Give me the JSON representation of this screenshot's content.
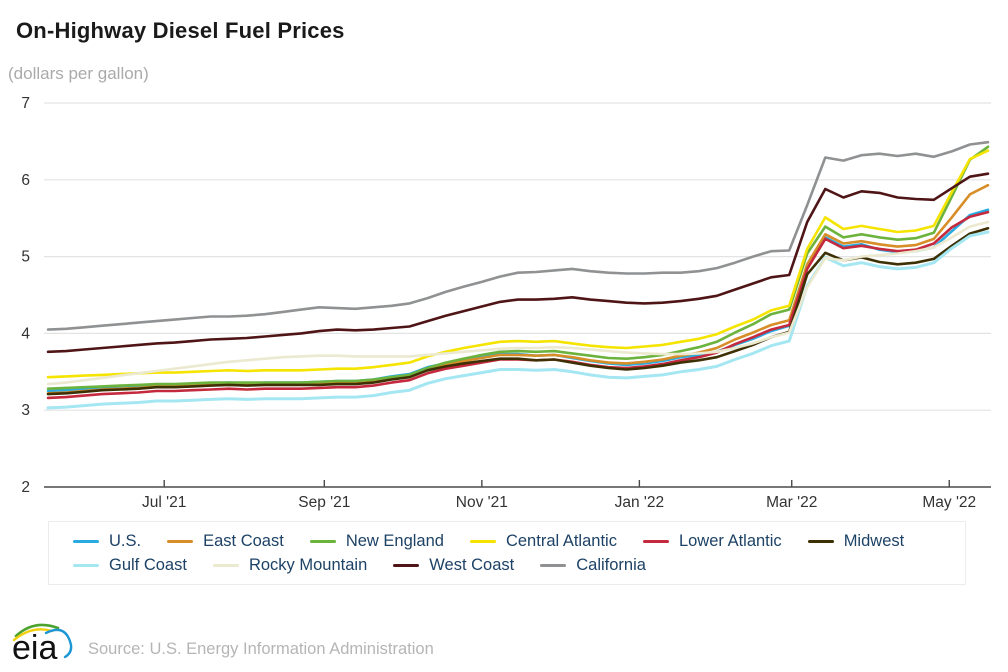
{
  "header": {
    "title": "On-Highway Diesel Fuel Prices",
    "subtitle": "(dollars per gallon)"
  },
  "footer": {
    "logo_text": "eia",
    "source": "Source: U.S. Energy Information Administration"
  },
  "chart_data": {
    "type": "line",
    "title": "On-Highway Diesel Fuel Prices",
    "ylabel": "dollars per gallon",
    "ylim": [
      2,
      7
    ],
    "yticks": [
      2,
      3,
      4,
      5,
      6,
      7
    ],
    "grid": true,
    "legend_position": "bottom",
    "x_unit": "weekly",
    "x_start": "2021-05-17",
    "x_end": "2022-05-16",
    "xtick_labels": [
      {
        "label": "Jul '21",
        "day": 45
      },
      {
        "label": "Sep '21",
        "day": 107
      },
      {
        "label": "Nov '21",
        "day": 168
      },
      {
        "label": "Jan '22",
        "day": 229
      },
      {
        "label": "Mar '22",
        "day": 288
      },
      {
        "label": "May '22",
        "day": 349
      }
    ],
    "series": [
      {
        "name": "U.S.",
        "color": "#29abe2",
        "values": [
          3.25,
          3.26,
          3.28,
          3.29,
          3.3,
          3.31,
          3.33,
          3.33,
          3.34,
          3.35,
          3.36,
          3.35,
          3.36,
          3.36,
          3.36,
          3.37,
          3.38,
          3.38,
          3.4,
          3.44,
          3.47,
          3.56,
          3.61,
          3.65,
          3.69,
          3.73,
          3.73,
          3.71,
          3.72,
          3.68,
          3.64,
          3.61,
          3.59,
          3.61,
          3.64,
          3.69,
          3.72,
          3.76,
          3.85,
          3.93,
          4.03,
          4.1,
          4.85,
          5.25,
          5.13,
          5.16,
          5.09,
          5.06,
          5.07,
          5.12,
          5.33,
          5.54,
          5.61
        ]
      },
      {
        "name": "East Coast",
        "color": "#d78e28",
        "values": [
          3.22,
          3.23,
          3.25,
          3.27,
          3.28,
          3.29,
          3.31,
          3.31,
          3.32,
          3.33,
          3.34,
          3.33,
          3.34,
          3.34,
          3.34,
          3.35,
          3.36,
          3.36,
          3.38,
          3.42,
          3.45,
          3.54,
          3.6,
          3.64,
          3.68,
          3.72,
          3.72,
          3.71,
          3.72,
          3.69,
          3.65,
          3.62,
          3.61,
          3.63,
          3.66,
          3.71,
          3.75,
          3.81,
          3.92,
          4.01,
          4.11,
          4.17,
          4.9,
          5.29,
          5.17,
          5.2,
          5.16,
          5.13,
          5.15,
          5.23,
          5.51,
          5.81,
          5.93
        ]
      },
      {
        "name": "New England",
        "color": "#6cb33e",
        "values": [
          3.28,
          3.29,
          3.3,
          3.31,
          3.32,
          3.33,
          3.34,
          3.34,
          3.35,
          3.36,
          3.36,
          3.36,
          3.36,
          3.36,
          3.36,
          3.37,
          3.38,
          3.38,
          3.4,
          3.43,
          3.46,
          3.55,
          3.62,
          3.67,
          3.72,
          3.76,
          3.77,
          3.76,
          3.77,
          3.74,
          3.71,
          3.68,
          3.67,
          3.69,
          3.72,
          3.77,
          3.82,
          3.89,
          4.01,
          4.12,
          4.25,
          4.31,
          5.04,
          5.39,
          5.25,
          5.29,
          5.25,
          5.22,
          5.24,
          5.31,
          5.78,
          6.26,
          6.43
        ]
      },
      {
        "name": "Central Atlantic",
        "color": "#f5e400",
        "values": [
          3.43,
          3.44,
          3.45,
          3.46,
          3.47,
          3.48,
          3.49,
          3.49,
          3.5,
          3.51,
          3.52,
          3.51,
          3.52,
          3.52,
          3.52,
          3.53,
          3.54,
          3.54,
          3.56,
          3.59,
          3.62,
          3.7,
          3.76,
          3.81,
          3.85,
          3.89,
          3.9,
          3.89,
          3.9,
          3.87,
          3.84,
          3.82,
          3.81,
          3.83,
          3.85,
          3.89,
          3.93,
          3.99,
          4.09,
          4.18,
          4.3,
          4.36,
          5.1,
          5.51,
          5.36,
          5.4,
          5.36,
          5.32,
          5.34,
          5.4,
          5.84,
          6.27,
          6.38
        ]
      },
      {
        "name": "Lower Atlantic",
        "color": "#c4293d",
        "values": [
          3.16,
          3.17,
          3.19,
          3.21,
          3.22,
          3.23,
          3.25,
          3.25,
          3.26,
          3.27,
          3.28,
          3.27,
          3.28,
          3.28,
          3.28,
          3.29,
          3.3,
          3.3,
          3.32,
          3.36,
          3.39,
          3.48,
          3.54,
          3.58,
          3.62,
          3.66,
          3.66,
          3.65,
          3.66,
          3.63,
          3.59,
          3.56,
          3.55,
          3.57,
          3.6,
          3.65,
          3.69,
          3.75,
          3.86,
          3.95,
          4.05,
          4.11,
          4.84,
          5.23,
          5.11,
          5.14,
          5.1,
          5.07,
          5.09,
          5.17,
          5.38,
          5.52,
          5.58
        ]
      },
      {
        "name": "Midwest",
        "color": "#3e3005",
        "values": [
          3.21,
          3.22,
          3.24,
          3.26,
          3.27,
          3.28,
          3.3,
          3.3,
          3.31,
          3.32,
          3.33,
          3.32,
          3.33,
          3.33,
          3.33,
          3.33,
          3.34,
          3.34,
          3.36,
          3.4,
          3.43,
          3.52,
          3.57,
          3.61,
          3.64,
          3.67,
          3.67,
          3.65,
          3.66,
          3.62,
          3.58,
          3.55,
          3.53,
          3.55,
          3.58,
          3.62,
          3.65,
          3.69,
          3.77,
          3.85,
          3.95,
          4.02,
          4.77,
          5.05,
          4.95,
          4.99,
          4.93,
          4.9,
          4.92,
          4.97,
          5.14,
          5.3,
          5.37
        ]
      },
      {
        "name": "Gulf Coast",
        "color": "#a4e7f2",
        "values": [
          3.03,
          3.04,
          3.06,
          3.08,
          3.09,
          3.1,
          3.12,
          3.12,
          3.13,
          3.14,
          3.15,
          3.14,
          3.15,
          3.15,
          3.15,
          3.16,
          3.17,
          3.17,
          3.19,
          3.23,
          3.26,
          3.35,
          3.41,
          3.45,
          3.49,
          3.53,
          3.53,
          3.52,
          3.53,
          3.5,
          3.46,
          3.43,
          3.42,
          3.44,
          3.46,
          3.5,
          3.53,
          3.57,
          3.66,
          3.74,
          3.84,
          3.9,
          4.62,
          4.99,
          4.88,
          4.92,
          4.87,
          4.84,
          4.86,
          4.92,
          5.11,
          5.27,
          5.32
        ]
      },
      {
        "name": "Rocky Mountain",
        "color": "#ebe9cf",
        "values": [
          3.34,
          3.36,
          3.39,
          3.42,
          3.45,
          3.48,
          3.51,
          3.54,
          3.57,
          3.6,
          3.63,
          3.65,
          3.67,
          3.69,
          3.7,
          3.71,
          3.71,
          3.7,
          3.7,
          3.7,
          3.7,
          3.72,
          3.74,
          3.76,
          3.78,
          3.8,
          3.81,
          3.81,
          3.82,
          3.81,
          3.79,
          3.77,
          3.75,
          3.74,
          3.73,
          3.73,
          3.74,
          3.76,
          3.81,
          3.87,
          3.95,
          4.01,
          4.6,
          4.98,
          4.95,
          5.0,
          5.02,
          5.04,
          5.07,
          5.12,
          5.25,
          5.39,
          5.45
        ]
      },
      {
        "name": "West Coast",
        "color": "#4f1516",
        "values": [
          3.76,
          3.77,
          3.79,
          3.81,
          3.83,
          3.85,
          3.87,
          3.88,
          3.9,
          3.92,
          3.93,
          3.94,
          3.96,
          3.98,
          4.0,
          4.03,
          4.05,
          4.04,
          4.05,
          4.07,
          4.09,
          4.16,
          4.23,
          4.29,
          4.35,
          4.41,
          4.44,
          4.44,
          4.45,
          4.47,
          4.44,
          4.42,
          4.4,
          4.39,
          4.4,
          4.42,
          4.45,
          4.49,
          4.57,
          4.65,
          4.73,
          4.76,
          5.45,
          5.88,
          5.77,
          5.85,
          5.83,
          5.77,
          5.75,
          5.74,
          5.89,
          6.04,
          6.08
        ]
      },
      {
        "name": "California",
        "color": "#8f9193",
        "values": [
          4.05,
          4.06,
          4.08,
          4.1,
          4.12,
          4.14,
          4.16,
          4.18,
          4.2,
          4.22,
          4.22,
          4.23,
          4.25,
          4.28,
          4.31,
          4.34,
          4.33,
          4.32,
          4.34,
          4.36,
          4.39,
          4.46,
          4.54,
          4.61,
          4.67,
          4.74,
          4.79,
          4.8,
          4.82,
          4.84,
          4.81,
          4.79,
          4.78,
          4.78,
          4.79,
          4.79,
          4.81,
          4.85,
          4.92,
          5.0,
          5.07,
          5.08,
          5.67,
          6.29,
          6.25,
          6.32,
          6.34,
          6.31,
          6.34,
          6.3,
          6.37,
          6.46,
          6.49
        ]
      }
    ]
  }
}
